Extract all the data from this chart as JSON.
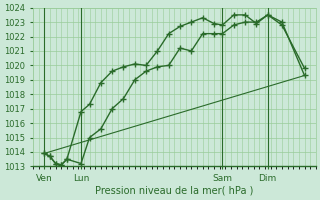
{
  "xlabel": "Pression niveau de la mer( hPa )",
  "ylim": [
    1013,
    1024
  ],
  "xlim": [
    0,
    100
  ],
  "yticks": [
    1013,
    1014,
    1015,
    1016,
    1017,
    1018,
    1019,
    1020,
    1021,
    1022,
    1023,
    1024
  ],
  "xtick_positions": [
    4,
    17,
    67,
    83
  ],
  "xtick_labels": [
    "Ven",
    "Lun",
    "Sam",
    "Dim"
  ],
  "vlines": [
    4,
    17,
    67,
    83
  ],
  "bg_color": "#cce8d8",
  "grid_color": "#99cc99",
  "line_color": "#2a6b2a",
  "line1_x": [
    4,
    6,
    8,
    10,
    12,
    17,
    20,
    24,
    28,
    32,
    36,
    40,
    44,
    48,
    52,
    56,
    60,
    64,
    67,
    71,
    75,
    79,
    83,
    88,
    96
  ],
  "line1_y": [
    1013.9,
    1013.7,
    1013.2,
    1013.1,
    1013.5,
    1016.8,
    1017.3,
    1018.8,
    1019.6,
    1019.9,
    1020.1,
    1020.0,
    1021.0,
    1022.2,
    1022.7,
    1023.0,
    1023.3,
    1022.9,
    1022.8,
    1023.5,
    1023.5,
    1022.9,
    1023.5,
    1023.0,
    1019.3
  ],
  "line2_x": [
    4,
    6,
    8,
    10,
    12,
    17,
    20,
    24,
    28,
    32,
    36,
    40,
    44,
    48,
    52,
    56,
    60,
    64,
    67,
    71,
    75,
    79,
    83,
    88,
    96
  ],
  "line2_y": [
    1013.9,
    1013.7,
    1013.2,
    1013.1,
    1013.5,
    1013.2,
    1015.0,
    1015.6,
    1017.0,
    1017.7,
    1019.0,
    1019.6,
    1019.9,
    1020.0,
    1021.2,
    1021.0,
    1022.2,
    1022.2,
    1022.2,
    1022.8,
    1023.0,
    1023.0,
    1023.5,
    1022.8,
    1019.8
  ],
  "line3_x": [
    4,
    96
  ],
  "line3_y": [
    1013.9,
    1019.3
  ],
  "marker": "+",
  "markersize": 5,
  "lw": 1.0
}
